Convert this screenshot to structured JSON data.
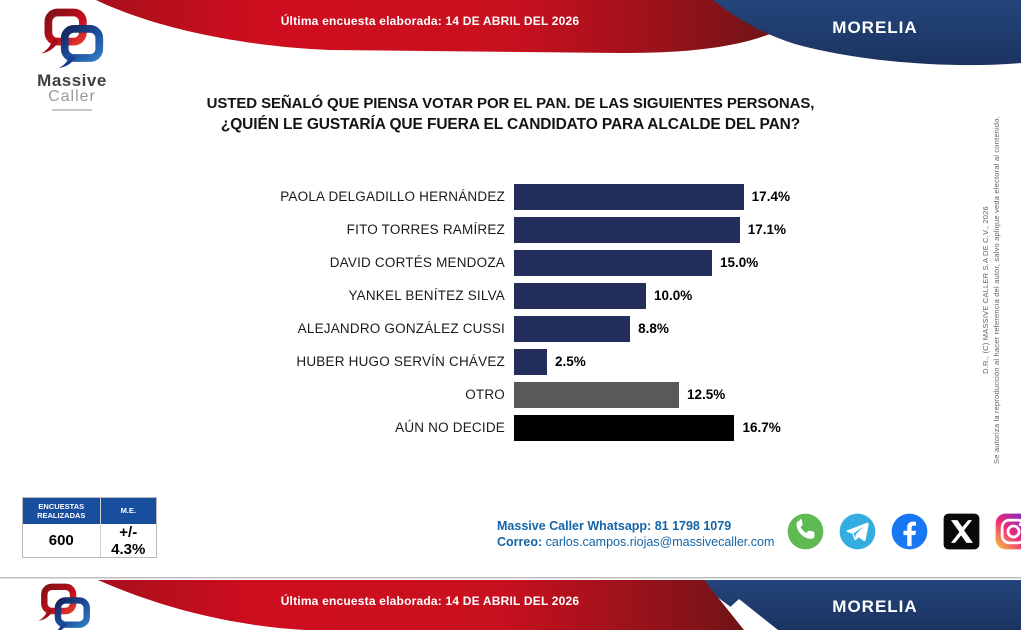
{
  "header": {
    "banner_text": "Última encuesta elaborada: 14 DE ABRIL DEL 2026",
    "city": "MORELIA"
  },
  "logo": {
    "line1": "Massive",
    "line2": "Caller"
  },
  "title": {
    "line1": "USTED SEÑALÓ QUE PIENSA VOTAR POR EL PAN. DE LAS SIGUIENTES PERSONAS,",
    "line2": "¿QUIÉN LE GUSTARÍA QUE FUERA EL CANDIDATO PARA ALCALDE DEL PAN?"
  },
  "chart_data": {
    "type": "bar",
    "orientation": "horizontal",
    "title": "¿Quién le gustaría que fuera el candidato para alcalde del PAN?",
    "categories": [
      "PAOLA DELGADILLO HERNÁNDEZ",
      "FITO TORRES RAMÍREZ",
      "DAVID CORTÉS MENDOZA",
      "YANKEL BENÍTEZ SILVA",
      "ALEJANDRO GONZÁLEZ CUSSI",
      "HUBER HUGO SERVÍN CHÁVEZ",
      "OTRO",
      "AÚN NO DECIDE"
    ],
    "values": [
      17.4,
      17.1,
      15.0,
      10.0,
      8.8,
      2.5,
      12.5,
      16.7
    ],
    "value_labels": [
      "17.4%",
      "17.1%",
      "15.0%",
      "10.0%",
      "8.8%",
      "2.5%",
      "12.5%",
      "16.7%"
    ],
    "bar_colors": [
      "#242e5c",
      "#242e5c",
      "#242e5c",
      "#242e5c",
      "#242e5c",
      "#242e5c",
      "#595959",
      "#000000"
    ],
    "xlim": [
      0,
      20
    ],
    "grid": false,
    "legend": false
  },
  "stats": {
    "col1_header": "ENCUESTAS REALIZADAS",
    "col2_header": "M.E.",
    "col1_value": "600",
    "col2_value": "+/- 4.3%"
  },
  "contact": {
    "line1": "Massive Caller Whatsapp: 81 1798 1079",
    "line2_label": "Correo:",
    "line2_value": "carlos.campos.riojas@massivecaller.com"
  },
  "social": [
    "whatsapp-icon",
    "telegram-icon",
    "facebook-icon",
    "x-icon",
    "instagram-icon"
  ],
  "copyright": {
    "line1": "D.R., (C) MASSIVE CALLER S.A DE C.V., 2026",
    "line2": "Se autoriza la reproducción al hacer referencia del autor, salvo aplique veda electoral al contenido."
  },
  "footer": {
    "banner_text": "Última encuesta elaborada: 14 DE ABRIL DEL 2026",
    "city": "MORELIA"
  },
  "colors": {
    "banner_red": "#c8101f",
    "banner_red_dark": "#7c141c",
    "banner_navy": "#1e3a67",
    "bar_navy": "#242e5c",
    "bar_gray": "#595959",
    "bar_black": "#000000",
    "table_header_blue": "#174f9e",
    "contact_blue": "#1465a8"
  }
}
